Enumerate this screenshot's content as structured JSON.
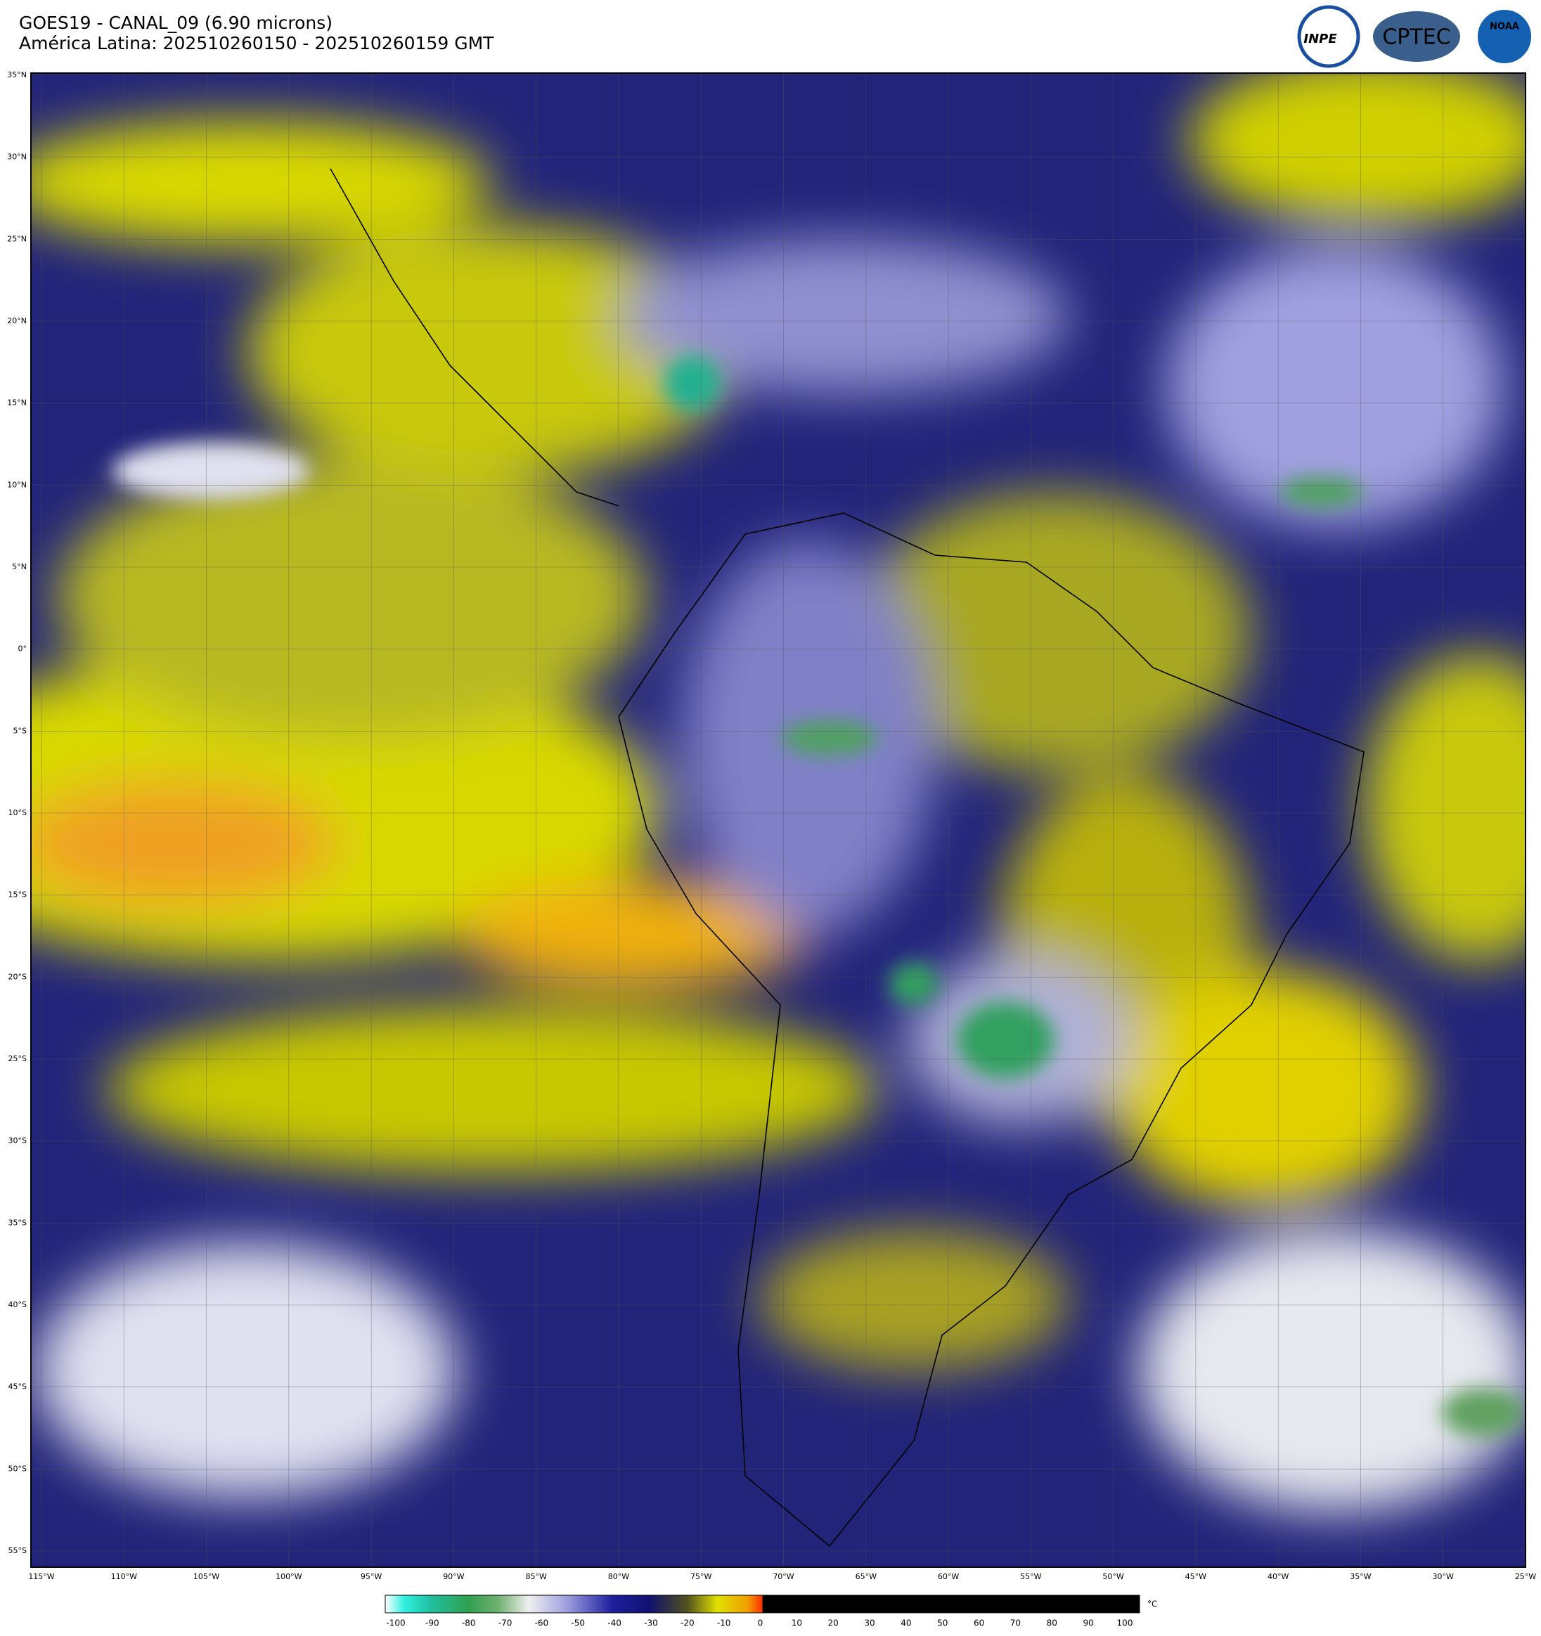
{
  "header": {
    "title": "GOES19 - CANAL_09 (6.90 microns)",
    "subtitle": "América Latina: 202510260150 - 202510260159 GMT"
  },
  "logos": [
    "INPE",
    "CPTEC",
    "NOAA"
  ],
  "map": {
    "lat_labels": [
      "35°N",
      "30°N",
      "25°N",
      "20°N",
      "15°N",
      "10°N",
      "5°N",
      "0°",
      "5°S",
      "10°S",
      "15°S",
      "20°S",
      "25°S",
      "30°S",
      "35°S",
      "40°S",
      "45°S",
      "50°S",
      "55°S"
    ],
    "lon_labels": [
      "115°W",
      "110°W",
      "105°W",
      "100°W",
      "95°W",
      "90°W",
      "85°W",
      "80°W",
      "75°W",
      "70°W",
      "65°W",
      "60°W",
      "55°W",
      "50°W",
      "45°W",
      "40°W",
      "35°W",
      "30°W",
      "25°W"
    ]
  },
  "colorbar": {
    "labels": [
      -100,
      -90,
      -80,
      -70,
      -60,
      -50,
      -40,
      -30,
      -20,
      -10,
      0,
      10,
      20,
      30,
      40,
      50,
      60,
      70,
      80,
      90,
      100
    ],
    "unit": "°C"
  }
}
